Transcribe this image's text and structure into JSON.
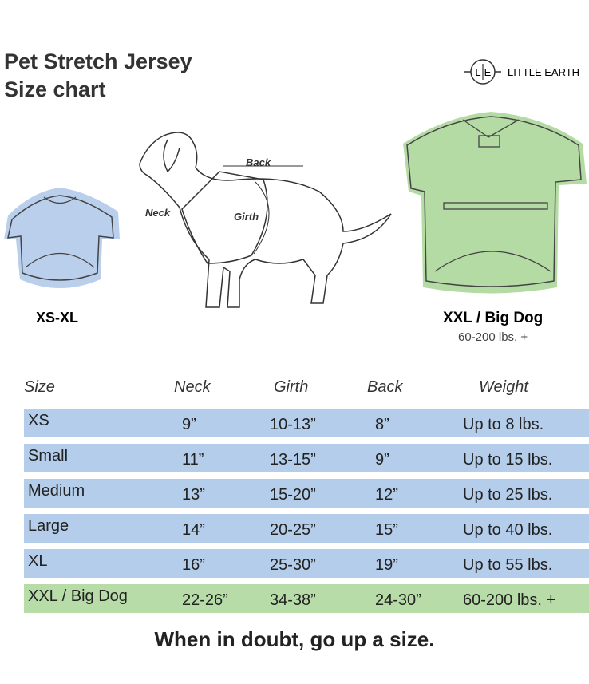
{
  "header": {
    "title": [
      "Pet Stretch Jersey",
      "Size chart"
    ],
    "logo": {
      "mark": [
        "L",
        "E"
      ],
      "name": "LITTLE EARTH"
    }
  },
  "illustration": {
    "small": {
      "label": "XS-XL"
    },
    "dog": {
      "back": "Back",
      "neck": "Neck",
      "girth": "Girth"
    },
    "big": {
      "label": "XXL / Big Dog",
      "weight": "60-200 lbs. +"
    }
  },
  "table": {
    "columns": [
      "Size",
      "Neck",
      "Girth",
      "Back",
      "Weight"
    ],
    "rows": [
      [
        "XS",
        "9”",
        "10-13”",
        "8”",
        "Up to 8 lbs."
      ],
      [
        "Small",
        "11”",
        "13-15”",
        "9”",
        "Up to 15 lbs."
      ],
      [
        "Medium",
        "13”",
        "15-20”",
        "12”",
        "Up to 25 lbs."
      ],
      [
        "Large",
        "14”",
        "20-25”",
        "15”",
        "Up to 40 lbs."
      ],
      [
        "XL",
        "16”",
        "25-30”",
        "19”",
        "Up to 55 lbs."
      ],
      [
        "XXL / Big Dog",
        "22-26”",
        "34-38”",
        "24-30”",
        "60-200 lbs. +"
      ]
    ]
  },
  "footer": "When in doubt, go up a size."
}
